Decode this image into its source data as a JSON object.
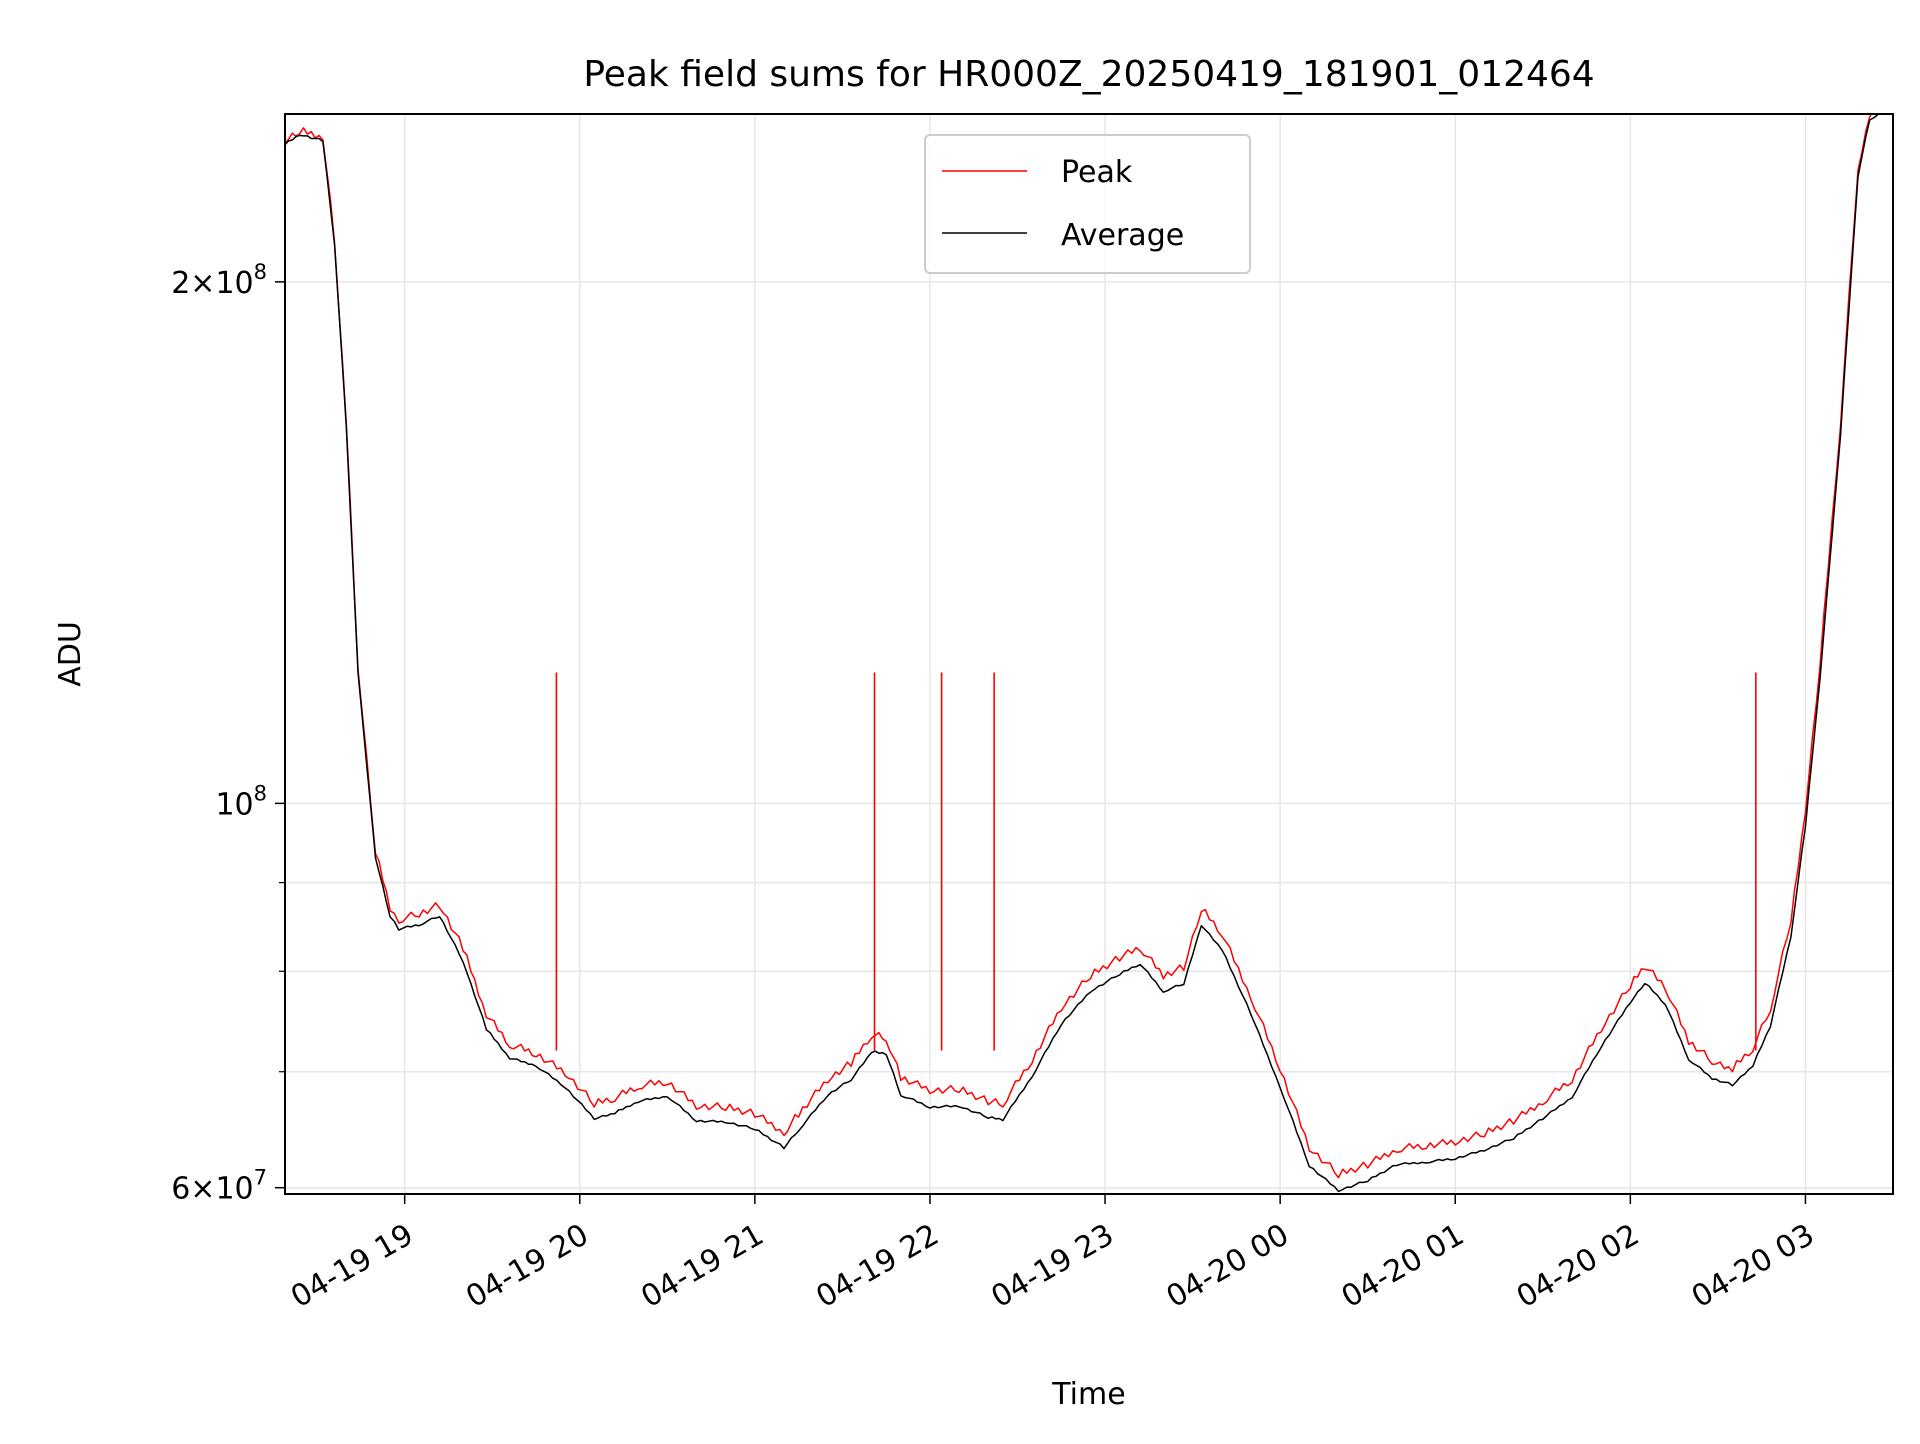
{
  "chart_data": {
    "type": "line",
    "title": "Peak field sums for HR000Z_20250419_181901_012464",
    "xlabel": "Time",
    "ylabel": "ADU",
    "x_range": [
      "2025-04-19 18:19",
      "2025-04-20 03:30"
    ],
    "x_ticks": [
      "04-19 19",
      "04-19 20",
      "04-19 21",
      "04-19 22",
      "04-19 23",
      "04-20 00",
      "04-20 01",
      "04-20 02",
      "04-20 03"
    ],
    "y_scale": "log",
    "ylim": [
      59500000,
      250000000
    ],
    "y_tick_labels": [
      {
        "value": 60000000,
        "mantissa": "6",
        "exponent": "7"
      },
      {
        "value": 100000000,
        "mantissa": "",
        "exponent": "8"
      },
      {
        "value": 200000000,
        "mantissa": "2",
        "exponent": "8"
      }
    ],
    "y_minor_ticks": [
      70000000,
      80000000,
      90000000
    ],
    "grid": true,
    "legend_position": "top-center",
    "series": [
      {
        "name": "Average",
        "color": "#000000",
        "x": [
          "2025-04-19 18:19",
          "2025-04-19 18:24",
          "2025-04-19 18:32",
          "2025-04-19 18:36",
          "2025-04-19 18:40",
          "2025-04-19 18:44",
          "2025-04-19 18:50",
          "2025-04-19 18:55",
          "2025-04-19 18:58",
          "2025-04-19 19:05",
          "2025-04-19 19:12",
          "2025-04-19 19:20",
          "2025-04-19 19:28",
          "2025-04-19 19:36",
          "2025-04-19 19:45",
          "2025-04-19 19:55",
          "2025-04-19 20:05",
          "2025-04-19 20:12",
          "2025-04-19 20:20",
          "2025-04-19 20:30",
          "2025-04-19 20:40",
          "2025-04-19 20:50",
          "2025-04-19 21:00",
          "2025-04-19 21:10",
          "2025-04-19 21:15",
          "2025-04-19 21:25",
          "2025-04-19 21:33",
          "2025-04-19 21:40",
          "2025-04-19 21:45",
          "2025-04-19 21:50",
          "2025-04-19 22:00",
          "2025-04-19 22:10",
          "2025-04-19 22:20",
          "2025-04-19 22:25",
          "2025-04-19 22:35",
          "2025-04-19 22:45",
          "2025-04-19 22:55",
          "2025-04-19 23:05",
          "2025-04-19 23:12",
          "2025-04-19 23:20",
          "2025-04-19 23:27",
          "2025-04-19 23:33",
          "2025-04-19 23:40",
          "2025-04-19 23:50",
          "2025-04-20 00:00",
          "2025-04-20 00:10",
          "2025-04-20 00:20",
          "2025-04-20 00:30",
          "2025-04-20 00:40",
          "2025-04-20 00:50",
          "2025-04-20 01:00",
          "2025-04-20 01:10",
          "2025-04-20 01:20",
          "2025-04-20 01:30",
          "2025-04-20 01:40",
          "2025-04-20 01:50",
          "2025-04-20 02:00",
          "2025-04-20 02:05",
          "2025-04-20 02:12",
          "2025-04-20 02:20",
          "2025-04-20 02:28",
          "2025-04-20 02:35",
          "2025-04-20 02:42",
          "2025-04-20 02:48",
          "2025-04-20 02:55",
          "2025-04-20 03:00",
          "2025-04-20 03:05",
          "2025-04-20 03:12",
          "2025-04-20 03:18",
          "2025-04-20 03:22",
          "2025-04-20 03:30"
        ],
        "y": [
          240000000,
          243000000,
          241000000,
          210000000,
          165000000,
          119000000,
          93000000,
          86000000,
          84500000,
          85000000,
          86000000,
          81000000,
          74000000,
          71200000,
          70500000,
          68500000,
          65700000,
          66200000,
          67200000,
          67700000,
          65500000,
          65400000,
          64800000,
          63200000,
          64700000,
          67800000,
          69200000,
          71800000,
          71600000,
          67800000,
          66700000,
          66800000,
          65800000,
          65600000,
          69500000,
          74500000,
          77800000,
          79600000,
          80700000,
          77800000,
          78600000,
          85000000,
          82300000,
          75500000,
          68500000,
          61700000,
          59700000,
          60500000,
          61800000,
          62000000,
          62300000,
          63000000,
          64000000,
          65700000,
          67600000,
          72300000,
          76700000,
          78700000,
          76500000,
          71100000,
          69300000,
          68700000,
          70500000,
          74300000,
          83700000,
          97000000,
          118000000,
          163000000,
          230000000,
          248000000,
          252000000
        ]
      },
      {
        "name": "Peak",
        "color": "#ff0000",
        "x": [
          "2025-04-19 18:19",
          "2025-04-19 18:24",
          "2025-04-19 18:32",
          "2025-04-19 18:36",
          "2025-04-19 18:40",
          "2025-04-19 18:44",
          "2025-04-19 18:50",
          "2025-04-19 18:55",
          "2025-04-19 18:58",
          "2025-04-19 19:05",
          "2025-04-19 19:12",
          "2025-04-19 19:20",
          "2025-04-19 19:28",
          "2025-04-19 19:36",
          "2025-04-19 19:45",
          "2025-04-19 19:55",
          "2025-04-19 20:05",
          "2025-04-19 20:12",
          "2025-04-19 20:20",
          "2025-04-19 20:30",
          "2025-04-19 20:40",
          "2025-04-19 20:50",
          "2025-04-19 21:00",
          "2025-04-19 21:10",
          "2025-04-19 21:15",
          "2025-04-19 21:25",
          "2025-04-19 21:33",
          "2025-04-19 21:40",
          "2025-04-19 21:45",
          "2025-04-19 21:50",
          "2025-04-19 22:00",
          "2025-04-19 22:10",
          "2025-04-19 22:20",
          "2025-04-19 22:25",
          "2025-04-19 22:35",
          "2025-04-19 22:45",
          "2025-04-19 22:55",
          "2025-04-19 23:05",
          "2025-04-19 23:12",
          "2025-04-19 23:20",
          "2025-04-19 23:27",
          "2025-04-19 23:33",
          "2025-04-19 23:40",
          "2025-04-19 23:50",
          "2025-04-20 00:00",
          "2025-04-20 00:10",
          "2025-04-20 00:20",
          "2025-04-20 00:30",
          "2025-04-20 00:40",
          "2025-04-20 00:50",
          "2025-04-20 01:00",
          "2025-04-20 01:10",
          "2025-04-20 01:20",
          "2025-04-20 01:30",
          "2025-04-20 01:40",
          "2025-04-20 01:50",
          "2025-04-20 02:00",
          "2025-04-20 02:05",
          "2025-04-20 02:12",
          "2025-04-20 02:20",
          "2025-04-20 02:28",
          "2025-04-20 02:35",
          "2025-04-20 02:42",
          "2025-04-20 02:48",
          "2025-04-20 02:55",
          "2025-04-20 03:00",
          "2025-04-20 03:05",
          "2025-04-20 03:12",
          "2025-04-20 03:18",
          "2025-04-20 03:22",
          "2025-04-20 03:30"
        ],
        "y": [
          240500000,
          243500000,
          241500000,
          210500000,
          165500000,
          119500000,
          93500000,
          86700000,
          85300000,
          86000000,
          87000000,
          82200000,
          75200000,
          72300000,
          71400000,
          69600000,
          66800000,
          67300000,
          68400000,
          68800000,
          66600000,
          66500000,
          65900000,
          64300000,
          65900000,
          69000000,
          70500000,
          73200000,
          72900000,
          69200000,
          68000000,
          68100000,
          67000000,
          66800000,
          70800000,
          75900000,
          79200000,
          81100000,
          82200000,
          79200000,
          80100000,
          86600000,
          83800000,
          77000000,
          70000000,
          63000000,
          60800000,
          61600000,
          62900000,
          63200000,
          63500000,
          64200000,
          65300000,
          67000000,
          69000000,
          73800000,
          78200000,
          80200000,
          78000000,
          72600000,
          70700000,
          70000000,
          71900000,
          75800000,
          85300000,
          98800000,
          120000000,
          165000000,
          232000000,
          249000000,
          253000000
        ]
      }
    ],
    "peak_spikes": [
      {
        "x": "2025-04-19 19:52",
        "y": 119000000
      },
      {
        "x": "2025-04-19 21:41",
        "y": 119000000
      },
      {
        "x": "2025-04-19 22:04",
        "y": 119000000
      },
      {
        "x": "2025-04-19 22:22",
        "y": 119000000
      },
      {
        "x": "2025-04-20 02:43",
        "y": 119000000
      }
    ],
    "legend": [
      {
        "label": "Peak",
        "color": "#ff0000"
      },
      {
        "label": "Average",
        "color": "#000000"
      }
    ]
  }
}
